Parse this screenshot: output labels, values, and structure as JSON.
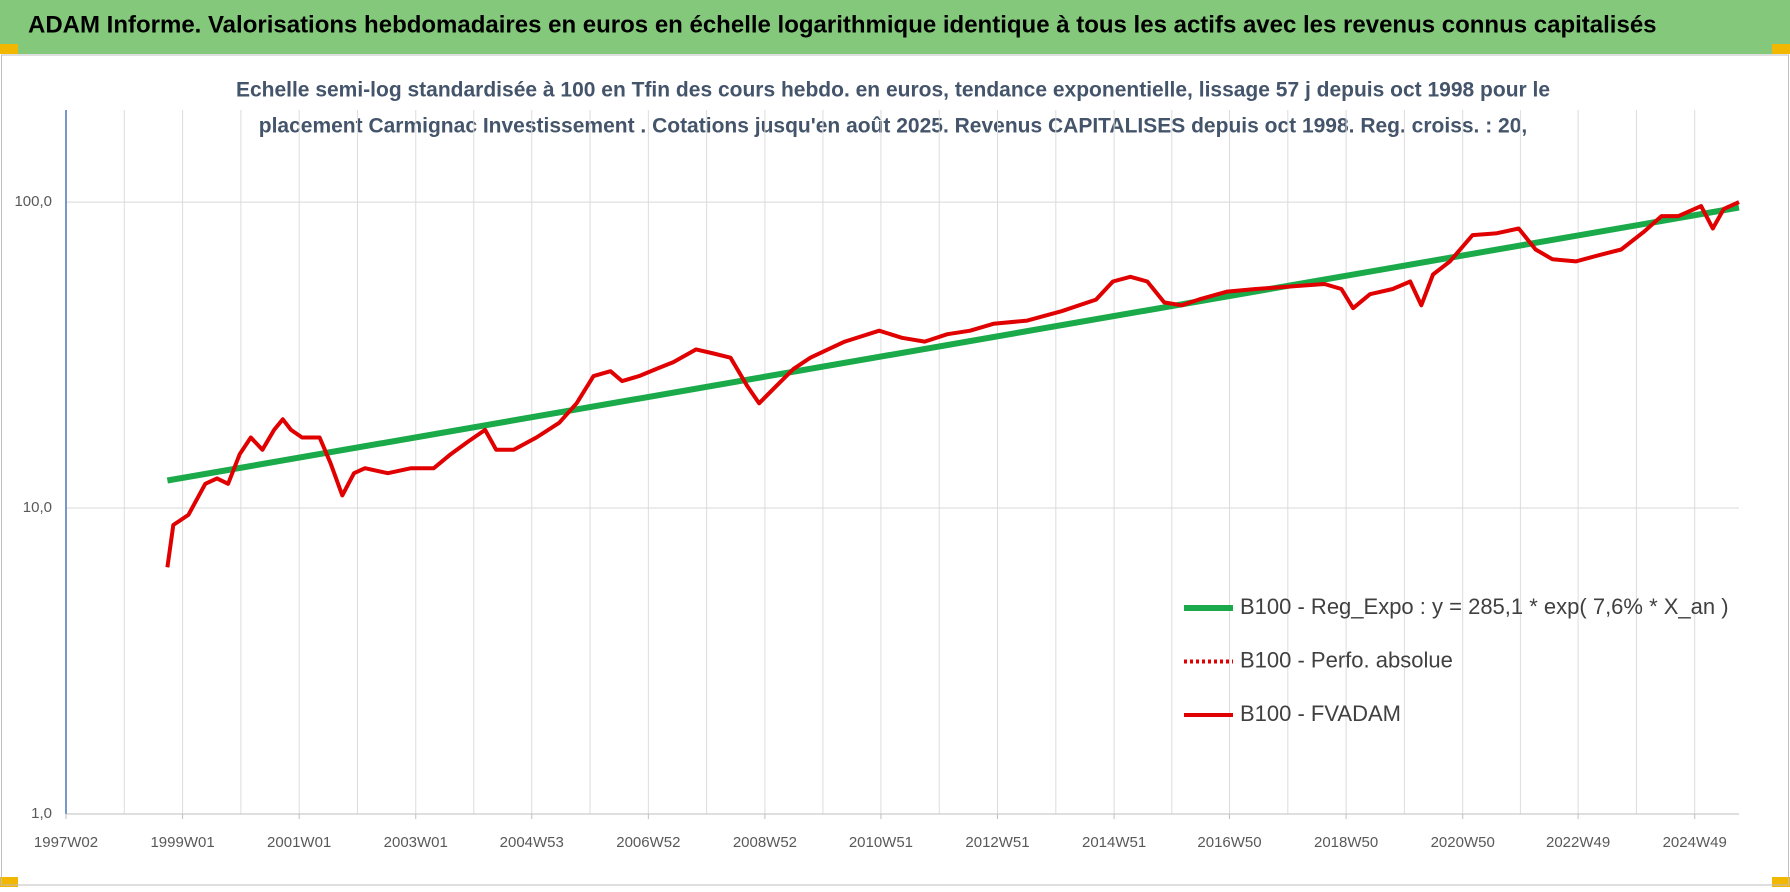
{
  "header": {
    "title": "ADAM Informe. Valorisations hebdomadaires en euros en échelle logarithmique identique à tous les actifs avec les revenus connus capitalisés"
  },
  "chart_data": {
    "type": "line",
    "title": [
      "Echelle semi-log standardisée à 100 en Tfin des cours hebdo. en euros, tendance exponentielle, lissage 57 j depuis oct 1998 pour le",
      "placement Carmignac Investissement . Cotations jusqu'en août 2025. Revenus CAPITALISES depuis oct 1998. Reg. croiss. : 20,"
    ],
    "log_y": true,
    "grid": true,
    "legend": "lower right",
    "xlim": [
      1997,
      2025.7
    ],
    "xticks": [
      {
        "value": 1997.0,
        "label": "1997W02"
      },
      {
        "value": 1999.0,
        "label": "1999W01"
      },
      {
        "value": 2001.0,
        "label": "2001W01"
      },
      {
        "value": 2003.0,
        "label": "2003W01"
      },
      {
        "value": 2004.99,
        "label": "2004W53"
      },
      {
        "value": 2006.99,
        "label": "2006W52"
      },
      {
        "value": 2008.99,
        "label": "2008W52"
      },
      {
        "value": 2010.98,
        "label": "2010W51"
      },
      {
        "value": 2012.98,
        "label": "2012W51"
      },
      {
        "value": 2014.98,
        "label": "2014W51"
      },
      {
        "value": 2016.96,
        "label": "2016W50"
      },
      {
        "value": 2018.96,
        "label": "2018W50"
      },
      {
        "value": 2020.96,
        "label": "2020W50"
      },
      {
        "value": 2022.94,
        "label": "2022W49"
      },
      {
        "value": 2024.94,
        "label": "2024W49"
      }
    ],
    "ylim": [
      1,
      200
    ],
    "yticks": [
      {
        "value": 1,
        "label": "1,0"
      },
      {
        "value": 10,
        "label": "10,0"
      },
      {
        "value": 100,
        "label": "100,0"
      }
    ],
    "series": [
      {
        "name": "B100 - Reg_Expo : y = 285,1 * exp( 7,6% *  X_an )",
        "color": "#1aaa4a",
        "width": 6,
        "dash": "solid",
        "x": [
          1998.74,
          2025.7
        ],
        "values": [
          12.3,
          96
        ]
      },
      {
        "name": "B100 - Perfo. absolue",
        "color": "#e00000",
        "width": 4,
        "dash": "dotted"
      },
      {
        "name": "B100 - FVADAM",
        "color": "#e00000",
        "width": 4,
        "dash": "solid",
        "x": [
          1998.74,
          1998.84,
          1999.1,
          1999.39,
          1999.59,
          1999.78,
          1999.98,
          2000.17,
          2000.37,
          2000.57,
          2000.72,
          2000.86,
          2001.05,
          2001.35,
          2001.54,
          2001.74,
          2001.94,
          2002.13,
          2002.52,
          2002.92,
          2003.31,
          2003.6,
          2003.9,
          2004.19,
          2004.38,
          2004.68,
          2005.07,
          2005.46,
          2005.76,
          2006.05,
          2006.34,
          2006.54,
          2006.83,
          2007.13,
          2007.42,
          2007.81,
          2008.11,
          2008.4,
          2008.69,
          2008.89,
          2009.18,
          2009.48,
          2009.77,
          2010.07,
          2010.36,
          2010.95,
          2011.34,
          2011.73,
          2012.12,
          2012.51,
          2012.91,
          2013.49,
          2014.08,
          2014.67,
          2014.96,
          2015.26,
          2015.55,
          2015.84,
          2016.14,
          2016.43,
          2016.92,
          2017.41,
          2018.0,
          2018.59,
          2018.88,
          2019.08,
          2019.37,
          2019.76,
          2020.06,
          2020.25,
          2020.45,
          2020.74,
          2021.13,
          2021.53,
          2021.92,
          2022.21,
          2022.5,
          2022.9,
          2023.29,
          2023.68,
          2024.07,
          2024.37,
          2024.66,
          2025.05,
          2025.25,
          2025.44,
          2025.7
        ],
        "values": [
          6.4,
          8.8,
          9.5,
          12.0,
          12.5,
          12.0,
          15,
          17,
          15.5,
          18,
          19.5,
          18,
          17,
          17,
          14,
          11,
          13,
          13.5,
          13,
          13.5,
          13.5,
          15,
          16.5,
          18,
          15.5,
          15.5,
          17,
          19,
          22,
          27,
          28,
          26,
          27,
          28.5,
          30,
          33,
          32,
          31,
          25,
          22,
          25,
          28.5,
          31,
          33,
          35,
          38,
          36,
          35,
          37,
          38,
          40,
          41,
          44,
          48,
          55,
          57,
          55,
          47,
          46,
          48,
          51,
          52,
          53,
          54,
          52,
          45,
          50,
          52,
          55,
          46,
          58,
          64,
          78,
          79,
          82,
          70,
          65,
          64,
          67,
          70,
          80,
          90,
          90,
          97,
          82,
          95,
          100
        ]
      }
    ]
  }
}
